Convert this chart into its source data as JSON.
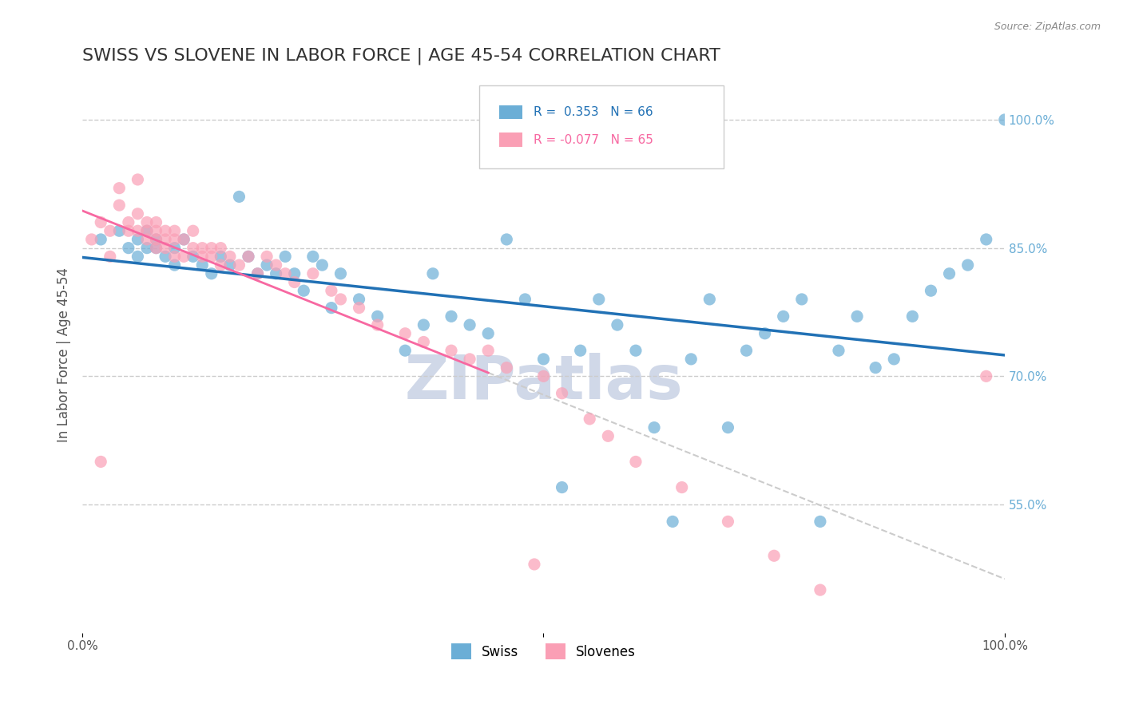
{
  "title": "SWISS VS SLOVENE IN LABOR FORCE | AGE 45-54 CORRELATION CHART",
  "source": "Source: ZipAtlas.com",
  "ylabel": "In Labor Force | Age 45-54",
  "xlim": [
    0.0,
    1.0
  ],
  "ylim": [
    0.4,
    1.05
  ],
  "yticks": [
    0.55,
    0.7,
    0.85,
    1.0
  ],
  "ytick_labels": [
    "55.0%",
    "70.0%",
    "85.0%",
    "100.0%"
  ],
  "legend_entries": [
    "Swiss",
    "Slovenes"
  ],
  "swiss_color": "#6baed6",
  "slovene_color": "#fa9fb5",
  "swiss_line_color": "#2171b5",
  "slovene_line_color": "#f768a1",
  "R_swiss": 0.353,
  "N_swiss": 66,
  "R_slovene": -0.077,
  "N_slovene": 65,
  "swiss_x": [
    0.02,
    0.04,
    0.05,
    0.06,
    0.06,
    0.07,
    0.07,
    0.08,
    0.08,
    0.09,
    0.1,
    0.1,
    0.11,
    0.12,
    0.13,
    0.14,
    0.15,
    0.16,
    0.17,
    0.18,
    0.19,
    0.2,
    0.21,
    0.22,
    0.23,
    0.24,
    0.25,
    0.26,
    0.27,
    0.28,
    0.3,
    0.32,
    0.35,
    0.37,
    0.38,
    0.4,
    0.42,
    0.44,
    0.46,
    0.48,
    0.5,
    0.52,
    0.54,
    0.56,
    0.58,
    0.6,
    0.62,
    0.64,
    0.66,
    0.68,
    0.7,
    0.72,
    0.74,
    0.76,
    0.78,
    0.8,
    0.82,
    0.84,
    0.86,
    0.88,
    0.9,
    0.92,
    0.94,
    0.96,
    0.98,
    1.0
  ],
  "swiss_y": [
    0.86,
    0.87,
    0.85,
    0.84,
    0.86,
    0.85,
    0.87,
    0.86,
    0.85,
    0.84,
    0.83,
    0.85,
    0.86,
    0.84,
    0.83,
    0.82,
    0.84,
    0.83,
    0.91,
    0.84,
    0.82,
    0.83,
    0.82,
    0.84,
    0.82,
    0.8,
    0.84,
    0.83,
    0.78,
    0.82,
    0.79,
    0.77,
    0.73,
    0.76,
    0.82,
    0.77,
    0.76,
    0.75,
    0.86,
    0.79,
    0.72,
    0.57,
    0.73,
    0.79,
    0.76,
    0.73,
    0.64,
    0.53,
    0.72,
    0.79,
    0.64,
    0.73,
    0.75,
    0.77,
    0.79,
    0.53,
    0.73,
    0.77,
    0.71,
    0.72,
    0.77,
    0.8,
    0.82,
    0.83,
    0.86,
    1.0
  ],
  "slovene_x": [
    0.01,
    0.02,
    0.02,
    0.03,
    0.03,
    0.04,
    0.04,
    0.05,
    0.05,
    0.06,
    0.06,
    0.06,
    0.07,
    0.07,
    0.07,
    0.08,
    0.08,
    0.08,
    0.08,
    0.09,
    0.09,
    0.09,
    0.1,
    0.1,
    0.1,
    0.11,
    0.11,
    0.12,
    0.12,
    0.13,
    0.13,
    0.14,
    0.14,
    0.15,
    0.15,
    0.16,
    0.17,
    0.18,
    0.19,
    0.2,
    0.21,
    0.22,
    0.23,
    0.25,
    0.27,
    0.28,
    0.3,
    0.32,
    0.35,
    0.37,
    0.4,
    0.42,
    0.44,
    0.46,
    0.49,
    0.5,
    0.52,
    0.55,
    0.57,
    0.6,
    0.65,
    0.7,
    0.75,
    0.8,
    0.98
  ],
  "slovene_y": [
    0.86,
    0.88,
    0.6,
    0.84,
    0.87,
    0.9,
    0.92,
    0.87,
    0.88,
    0.87,
    0.89,
    0.93,
    0.86,
    0.87,
    0.88,
    0.85,
    0.86,
    0.87,
    0.88,
    0.85,
    0.86,
    0.87,
    0.84,
    0.86,
    0.87,
    0.84,
    0.86,
    0.85,
    0.87,
    0.84,
    0.85,
    0.84,
    0.85,
    0.83,
    0.85,
    0.84,
    0.83,
    0.84,
    0.82,
    0.84,
    0.83,
    0.82,
    0.81,
    0.82,
    0.8,
    0.79,
    0.78,
    0.76,
    0.75,
    0.74,
    0.73,
    0.72,
    0.73,
    0.71,
    0.48,
    0.7,
    0.68,
    0.65,
    0.63,
    0.6,
    0.57,
    0.53,
    0.49,
    0.45,
    0.7
  ],
  "grid_color": "#cccccc",
  "background_color": "#ffffff",
  "title_fontsize": 16,
  "axis_label_fontsize": 12,
  "tick_fontsize": 11,
  "watermark_text": "ZIPatlas",
  "watermark_color": "#d0d8e8"
}
